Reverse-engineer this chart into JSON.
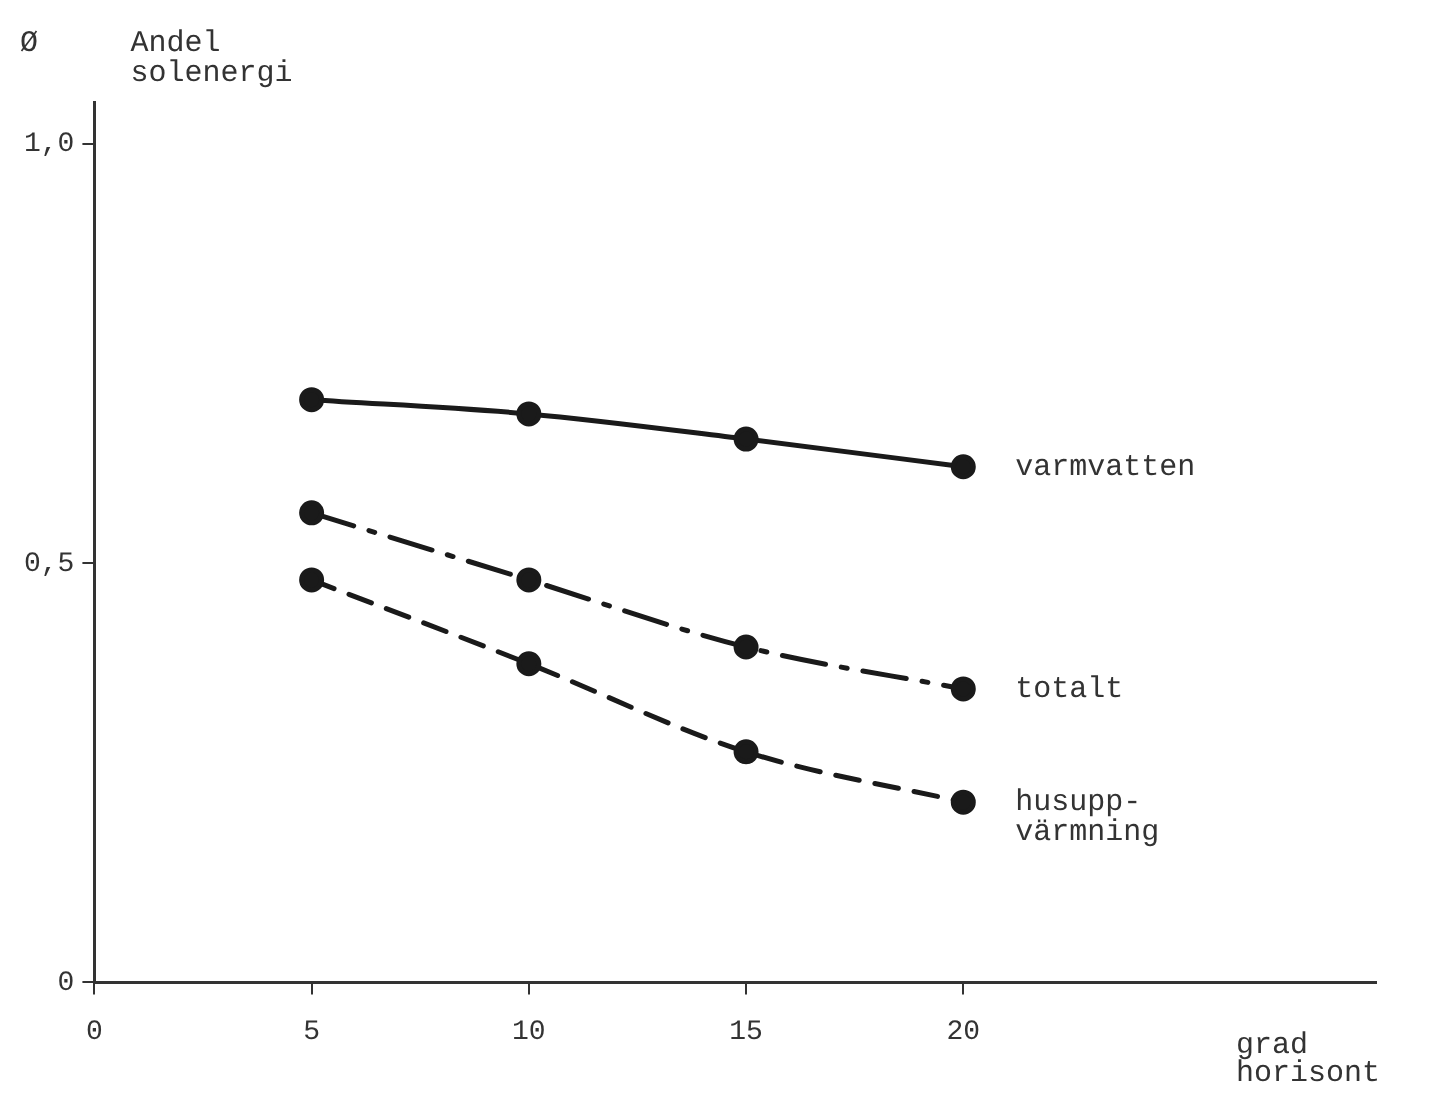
{
  "chart_data": {
    "type": "line",
    "xlabel": "grad horisont",
    "ylabel": "Andel solenergi",
    "annotations": [
      "Ø"
    ],
    "x": [
      5,
      10,
      15,
      20
    ],
    "series": [
      {
        "name": "varmvatten",
        "color": "#1a1a1a",
        "values": [
          0.695,
          0.678,
          0.648,
          0.615
        ],
        "line_style": "solid"
      },
      {
        "name": "totalt",
        "color": "#1a1a1a",
        "values": [
          0.56,
          0.48,
          0.4,
          0.35
        ],
        "line_style": "dashdot"
      },
      {
        "name": "husupp-\nvärmning",
        "color": "#1a1a1a",
        "values": [
          0.48,
          0.38,
          0.275,
          0.215
        ],
        "line_style": "dashed"
      }
    ],
    "xlim": [
      0,
      29.5
    ],
    "xticks": [
      0,
      5,
      10,
      15,
      20
    ],
    "ylim": [
      0,
      1.05
    ],
    "yticks": [
      {
        "value": 0,
        "label": "0"
      },
      {
        "value": 0.5,
        "label": "0,5"
      },
      {
        "value": 1,
        "label": "1,0"
      }
    ],
    "marker": "circle",
    "grid": false,
    "legend": false
  }
}
